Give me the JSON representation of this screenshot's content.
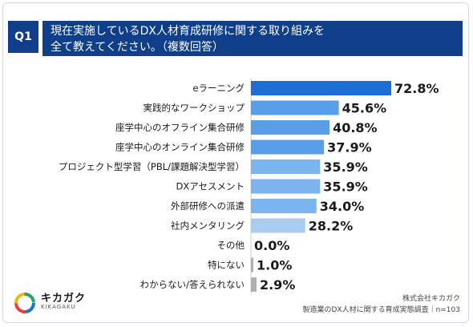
{
  "header": {
    "badge": "Q1",
    "title_line1": "現在実施しているDX人材育成研修に関する取り組みを",
    "title_line2": "全て教えてください。（複数回答）"
  },
  "chart_data": {
    "type": "bar",
    "orientation": "horizontal",
    "categories": [
      "eラーニング",
      "実践的なワークショップ",
      "座学中心のオフライン集合研修",
      "座学中心のオンライン集合研修",
      "プロジェクト型学習（PBL/課題解決型学習）",
      "DXアセスメント",
      "外部研修への派遣",
      "社内メンタリング",
      "その他",
      "特にない",
      "わからない/答えられない"
    ],
    "values": [
      72.8,
      45.6,
      40.8,
      37.9,
      35.9,
      35.9,
      34.0,
      28.2,
      0.0,
      1.0,
      2.9
    ],
    "value_labels": [
      "72.8%",
      "45.6%",
      "40.8%",
      "37.9%",
      "35.9%",
      "35.9%",
      "34.0%",
      "28.2%",
      "0.0%",
      "1.0%",
      "2.9%"
    ],
    "xlim": [
      0,
      100
    ],
    "grid": false,
    "colors": {
      "top": "#1d6fd6",
      "mid": "#5a9ee8",
      "low": "#a9cdf2",
      "none": "#b0b0b0"
    }
  },
  "footer": {
    "logo_name": "キカガク",
    "logo_sub": "KIKAGAKU",
    "source_line1": "株式会社キカガク",
    "source_line2": "製造業のDX人材に関する育成実態調査｜n=103"
  }
}
